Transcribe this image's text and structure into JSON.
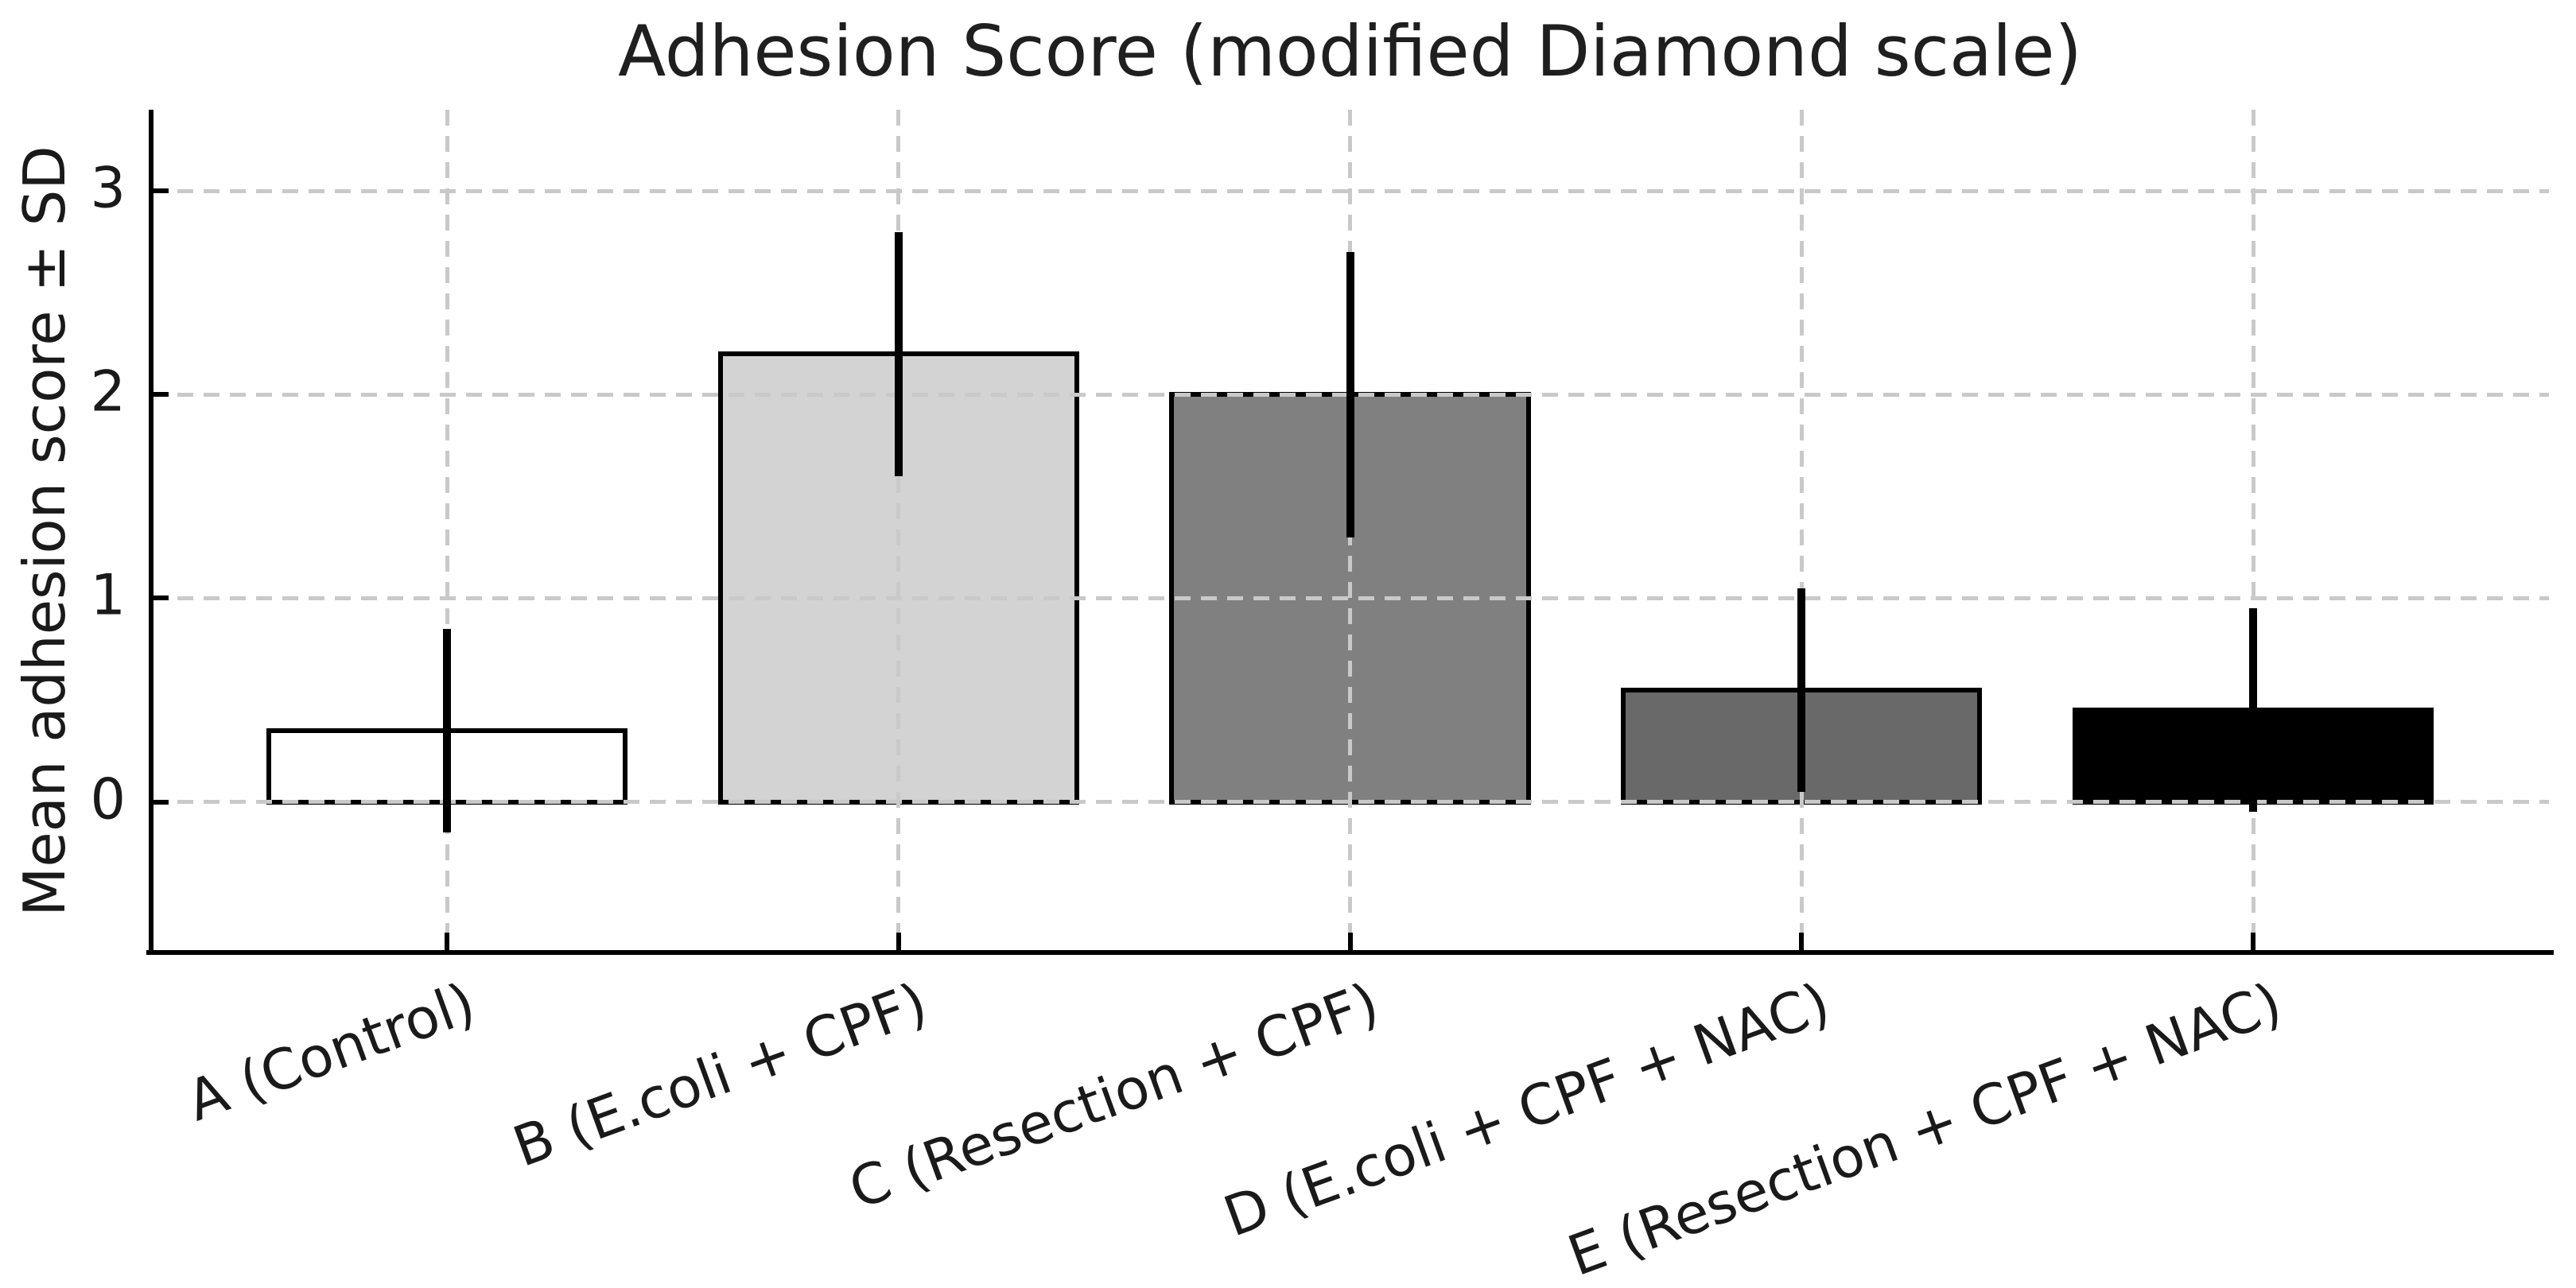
{
  "figure": {
    "title": "Adhesion Score (modified Diamond scale)",
    "ylabel": "Mean adhesion score ± SD"
  },
  "chart_data": {
    "type": "bar",
    "title": "Adhesion Score (modified Diamond scale)",
    "xlabel": "",
    "ylabel": "Mean adhesion score ± SD",
    "categories": [
      "A (Control)",
      "B (E.coli + CPF)",
      "C (Resection + CPF)",
      "D (E.coli + CPF + NAC)",
      "E (Resection + CPF + NAC)"
    ],
    "series": [
      {
        "name": "Mean adhesion score",
        "values": [
          0.35,
          2.2,
          2.0,
          0.55,
          0.45
        ],
        "sd": [
          0.5,
          0.6,
          0.7,
          0.5,
          0.5
        ]
      }
    ],
    "error_bar_ranges": [
      [
        -0.15,
        0.85
      ],
      [
        1.6,
        2.8
      ],
      [
        1.3,
        2.7
      ],
      [
        0.05,
        1.05
      ],
      [
        -0.05,
        0.95
      ]
    ],
    "bar_colors": [
      "#ffffff",
      "#d3d3d3",
      "#808080",
      "#696969",
      "#000000"
    ],
    "bar_edge_color": "#000000",
    "error_color": "#000000",
    "axis_color": "#000000",
    "text_color": "#1a1a1a",
    "grid": true,
    "grid_color": "#c9c9c9",
    "grid_style": "dashed",
    "grid_above_bars": true,
    "yticks": [
      0,
      1,
      2,
      3
    ],
    "ylim": [
      -0.74,
      3.4
    ],
    "bar_width_frac": 0.8,
    "x_tick_rotation_deg": 20,
    "legend_position": "none"
  }
}
